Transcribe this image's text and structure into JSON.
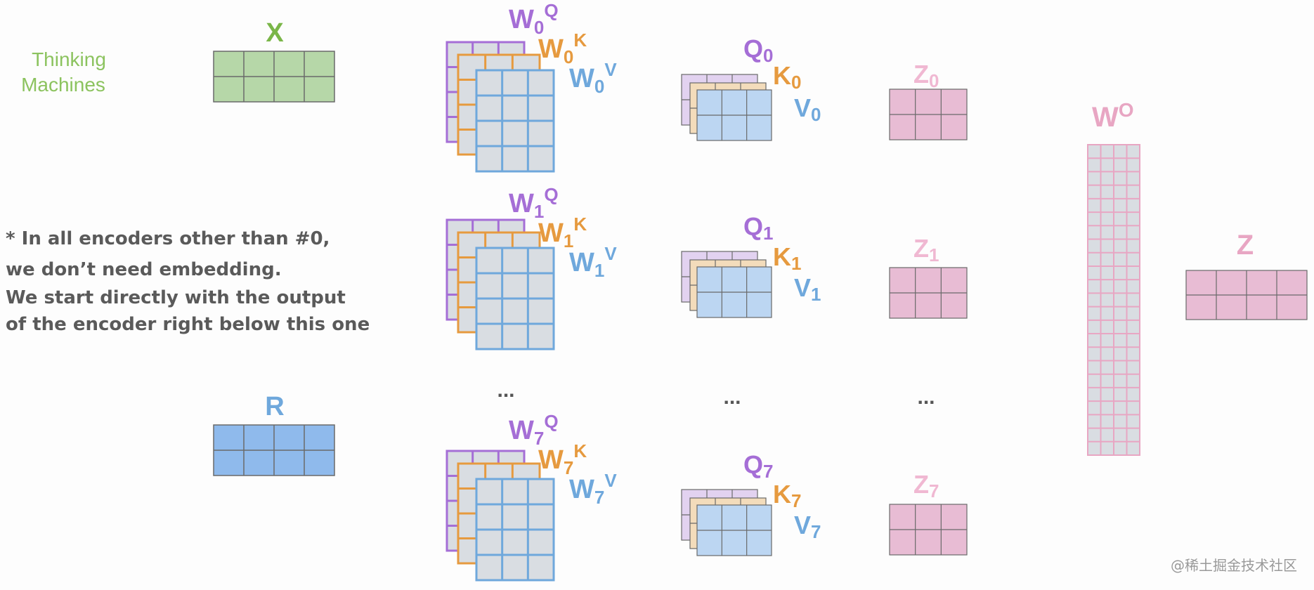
{
  "colors": {
    "green": "#7ab648",
    "green_fill": "#b6d7a8",
    "green_stroke": "#6a6a6a",
    "blue": "#6fa8dc",
    "blue_fill": "#8fbaec",
    "purple": "#a56ed6",
    "purple_fill": "#e2d2f0",
    "orange": "#e69a3f",
    "orange_fill": "#f3dcbb",
    "weight_fill": "#d9dde2",
    "weight_stroke_v": "#8fbaec",
    "v_fill": "#bcd6f2",
    "pink": "#e8a6c3",
    "pink_fill": "#e8bcd4",
    "grid_stroke": "#6a6a6a",
    "note": "#5a5a5a",
    "dots": "#555555",
    "watermark": "#999999"
  },
  "input": {
    "sentence_line1": "Thinking",
    "sentence_line2": "Machines",
    "x_label": "X",
    "r_label": "R"
  },
  "note": [
    "* In all encoders other than #0,",
    "we don’t need embedding.",
    "We start directly with the output",
    "of the encoder right below this one"
  ],
  "heads": [
    {
      "index": "0",
      "wq": "W",
      "wk": "W",
      "wv": "W",
      "q": "Q",
      "k": "K",
      "v": "V",
      "z": "Z"
    },
    {
      "index": "1",
      "wq": "W",
      "wk": "W",
      "wv": "W",
      "q": "Q",
      "k": "K",
      "v": "V",
      "z": "Z"
    },
    {
      "index": "7",
      "wq": "W",
      "wk": "W",
      "wv": "W",
      "q": "Q",
      "k": "K",
      "v": "V",
      "z": "Z"
    }
  ],
  "superscripts": {
    "q": "Q",
    "k": "K",
    "v": "V",
    "o": "O"
  },
  "ellipsis": "...",
  "output": {
    "wo_label": "W",
    "z_label": "Z"
  },
  "watermark": "@稀土掘金技术社区"
}
